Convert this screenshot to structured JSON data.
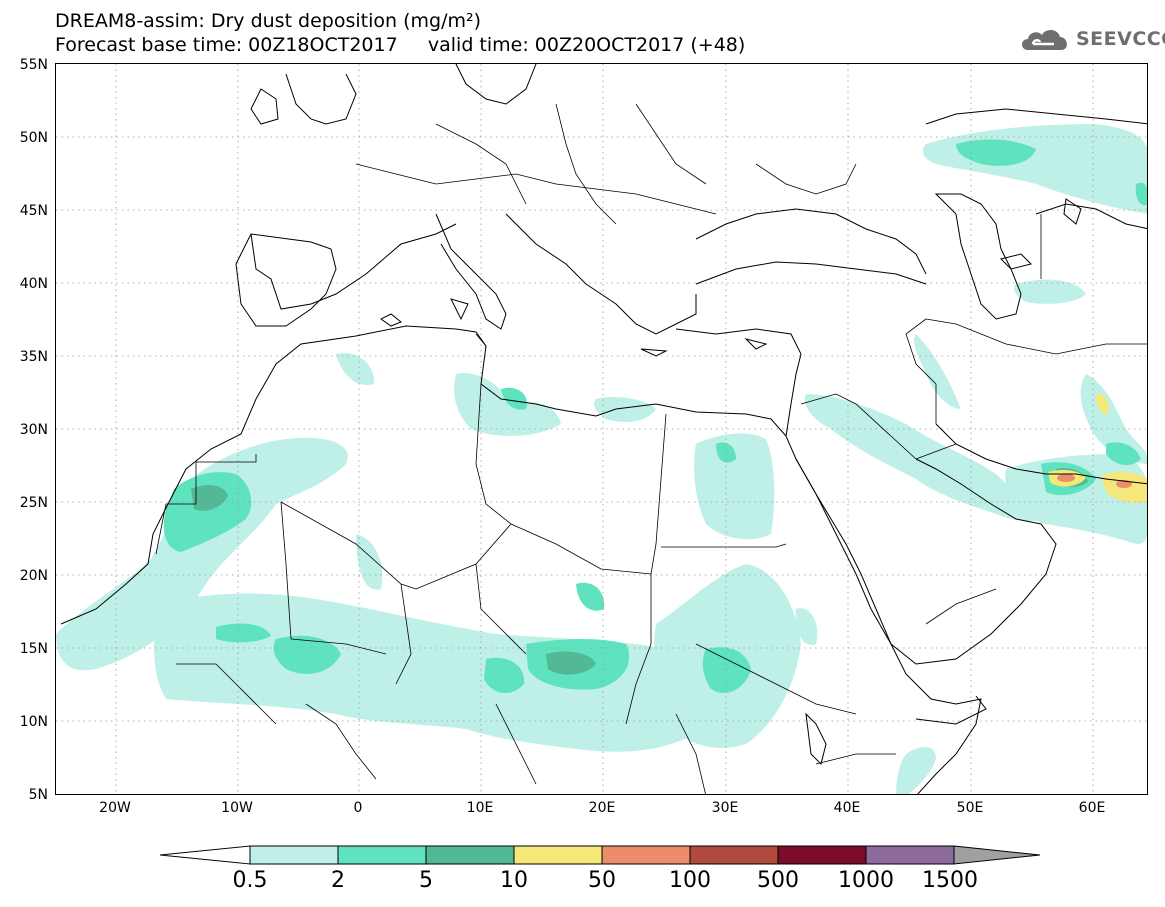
{
  "header": {
    "title_line1": "DREAM8-assim: Dry dust deposition (mg/m²)",
    "title_line2": "Forecast base time: 00Z18OCT2017     valid time: 00Z20OCT2017 (+48)"
  },
  "logo": {
    "text": "SEEVCCC",
    "icon": "cloud-icon"
  },
  "map": {
    "lat_labels": [
      "55N",
      "50N",
      "45N",
      "40N",
      "35N",
      "30N",
      "25N",
      "20N",
      "15N",
      "10N",
      "5N"
    ],
    "lon_labels": [
      "20W",
      "10W",
      "0",
      "10E",
      "20E",
      "30E",
      "40E",
      "50E",
      "60E"
    ],
    "colors": {
      "c0_5": "#bff0e8",
      "c2": "#5ee3be",
      "c5": "#52b895",
      "c10": "#f5e77a",
      "c50": "#eb8d6a",
      "c100": "#b04a3c"
    }
  },
  "colorbar": {
    "labels": [
      "0.5",
      "2",
      "5",
      "10",
      "50",
      "100",
      "500",
      "1000",
      "1500"
    ],
    "colors": [
      "#bff0e8",
      "#5ee3be",
      "#52b895",
      "#f5e77a",
      "#eb8d6a",
      "#b04a3c",
      "#7b0d2a",
      "#8c6a9c"
    ],
    "under_color": "#ffffff",
    "over_color": "#a0a0a0"
  }
}
